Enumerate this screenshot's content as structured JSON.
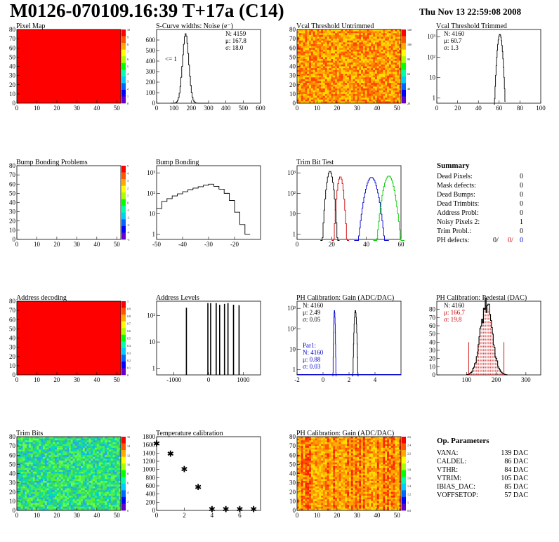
{
  "header": {
    "title": "M0126-070109.16:39 T+17a (C14)",
    "date": "Thu Nov 13 22:59:08 2008"
  },
  "colors": {
    "map_red": "#ff0000",
    "hist_line": "#000000",
    "blue": "#0000cc",
    "red": "#cc0000",
    "green": "#00cc00"
  },
  "palette_ticks": {
    "pixel_map": [
      "10",
      "9",
      "8",
      "7",
      "6",
      "5",
      "4",
      "3",
      "2",
      "1",
      "0"
    ],
    "vcal_untrimmed": [
      "120",
      "100",
      "80",
      "60",
      "40",
      "20"
    ],
    "bump_bonding_problems": [
      "5",
      "4",
      "3",
      "2",
      "1",
      "0",
      "-1",
      "-2",
      "-3",
      "-4",
      "-5"
    ],
    "address_decoding": [
      "1",
      "0.9",
      "0.8",
      "0.7",
      "0.6",
      "0.5",
      "0.4",
      "0.3",
      "0.2",
      "0.1",
      "0"
    ],
    "trim_bits": [
      "16",
      "14",
      "12",
      "10",
      "8",
      "6",
      "4",
      "2",
      "0"
    ],
    "ph_gain": [
      "2.6",
      "2.4",
      "2.2",
      "2",
      "1.8",
      "1.6",
      "1.4",
      "1.2",
      "1",
      "0.8"
    ]
  },
  "chart_data": [
    {
      "id": "pixel_map",
      "type": "heatmap",
      "title": "Pixel Map",
      "xlim": [
        0,
        52
      ],
      "ylim": [
        0,
        80
      ],
      "xticks": [
        "0",
        "10",
        "20",
        "30",
        "40",
        "50"
      ],
      "yticks": [
        "0",
        "10",
        "20",
        "30",
        "40",
        "50",
        "60",
        "70",
        "80"
      ],
      "fill": "uniform red"
    },
    {
      "id": "scurve",
      "type": "histogram",
      "title": "S-Curve widths: Noise (e⁻)",
      "xlim": [
        0,
        600
      ],
      "ylim": [
        0,
        700
      ],
      "xticks": [
        "0",
        "100",
        "200",
        "300",
        "400",
        "500",
        "600"
      ],
      "yticks": [
        "0",
        "100",
        "200",
        "300",
        "400",
        "500",
        "600"
      ],
      "stats": [
        "N: 4159",
        "μ: 167.8",
        "σ: 18.0"
      ],
      "annotation": "<= 1",
      "mean": 167.8,
      "sigma": 18.0,
      "peak": 660
    },
    {
      "id": "vcal_untrimmed",
      "type": "heatmap",
      "title": "Vcal Threshold Untrimmed",
      "xlim": [
        0,
        52
      ],
      "ylim": [
        0,
        80
      ],
      "xticks": [
        "0",
        "10",
        "20",
        "30",
        "40",
        "50"
      ],
      "yticks": [
        "0",
        "10",
        "20",
        "30",
        "40",
        "50",
        "60",
        "70",
        "80"
      ],
      "fill": "noisy orange"
    },
    {
      "id": "vcal_trimmed",
      "type": "histogram",
      "title": "Vcal Threshold Trimmed",
      "xlim": [
        0,
        100
      ],
      "log": true,
      "xticks": [
        "0",
        "20",
        "40",
        "60",
        "80",
        "100"
      ],
      "yticks": [
        "1",
        "10",
        "10²",
        "10³"
      ],
      "stats": [
        "N: 4160",
        "μ: 60.7",
        "σ:  1.3"
      ],
      "mean": 60.7,
      "sigma": 1.3,
      "peak": 1300
    },
    {
      "id": "bump_problems",
      "type": "heatmap",
      "title": "Bump Bonding Problems",
      "xlim": [
        0,
        52
      ],
      "ylim": [
        0,
        80
      ],
      "xticks": [
        "0",
        "10",
        "20",
        "30",
        "40",
        "50"
      ],
      "yticks": [
        "0",
        "10",
        "20",
        "30",
        "40",
        "50",
        "60",
        "70",
        "80"
      ],
      "fill": "empty"
    },
    {
      "id": "bump_bonding",
      "type": "histogram",
      "title": "Bump Bonding",
      "xlim": [
        -50,
        -10
      ],
      "log": true,
      "xticks": [
        "-50",
        "-40",
        "-30",
        "-20"
      ],
      "yticks": [
        "1",
        "10",
        "10²",
        "10³"
      ],
      "x": [
        -50,
        -48,
        -46,
        -44,
        -42,
        -40,
        -38,
        -36,
        -34,
        -32,
        -30,
        -28,
        -26,
        -24,
        -22,
        -20,
        -18,
        -16,
        -14
      ],
      "values": [
        18,
        40,
        55,
        75,
        95,
        120,
        150,
        180,
        210,
        250,
        280,
        220,
        160,
        100,
        45,
        12,
        3,
        1,
        1
      ]
    },
    {
      "id": "trim_bit_test",
      "type": "histogram",
      "title": "Trim Bit Test",
      "xlim": [
        0,
        60
      ],
      "log": true,
      "xticks": [
        "0",
        "20",
        "40",
        "60"
      ],
      "yticks": [
        "1",
        "10",
        "10²",
        "10³"
      ],
      "series": [
        {
          "mean": 19,
          "sigma": 1.1,
          "peak": 1200,
          "color": "#000000"
        },
        {
          "mean": 25,
          "sigma": 1.0,
          "peak": 650,
          "color": "#cc0000"
        },
        {
          "mean": 43,
          "sigma": 2.0,
          "peak": 600,
          "color": "#0000cc"
        },
        {
          "mean": 53,
          "sigma": 1.8,
          "peak": 700,
          "color": "#00cc00"
        }
      ]
    },
    {
      "id": "address_decoding",
      "type": "heatmap",
      "title": "Address decoding",
      "xlim": [
        0,
        52
      ],
      "ylim": [
        0,
        80
      ],
      "xticks": [
        "0",
        "10",
        "20",
        "30",
        "40",
        "50"
      ],
      "yticks": [
        "0",
        "10",
        "20",
        "30",
        "40",
        "50",
        "60",
        "70",
        "80"
      ],
      "fill": "uniform red"
    },
    {
      "id": "address_levels",
      "type": "histogram",
      "title": "Address Levels",
      "xlim": [
        -1500,
        1500
      ],
      "log": true,
      "xticks": [
        "-1000",
        "0",
        "1000"
      ],
      "yticks": [
        "1",
        "10",
        "10²"
      ],
      "lines": [
        -640,
        -20,
        60,
        220,
        320,
        460,
        560,
        720,
        880
      ],
      "heights": [
        200,
        300,
        300,
        300,
        260,
        280,
        300,
        260,
        250
      ]
    },
    {
      "id": "ph_gain_hist",
      "type": "histogram",
      "title": "PH Calibration: Gain (ADC/DAC)",
      "xlim": [
        -2,
        6
      ],
      "log": true,
      "xticks": [
        "-2",
        "0",
        "2",
        "4"
      ],
      "yticks": [
        "1",
        "10",
        "10²",
        "10³"
      ],
      "stats": [
        "N: 4160",
        "μ: 2.49",
        "σ: 0.05"
      ],
      "par1": {
        "label": "Par1:",
        "stats": [
          "N: 4160",
          "μ: 0.88",
          "σ: 0.03"
        ]
      },
      "series": [
        {
          "mean": 2.49,
          "sigma": 0.05,
          "peak": 800,
          "color": "#000000"
        },
        {
          "mean": 0.88,
          "sigma": 0.03,
          "peak": 800,
          "color": "#0000cc"
        }
      ]
    },
    {
      "id": "ph_pedestal",
      "type": "histogram",
      "title": "PH Calibration: Pedestal (DAC)",
      "xlim": [
        0,
        350
      ],
      "ylim": [
        0,
        90
      ],
      "xticks": [
        "100",
        "200",
        "300"
      ],
      "yticks": [
        "0",
        "10",
        "20",
        "30",
        "40",
        "50",
        "60",
        "70",
        "80"
      ],
      "stats": [
        "N: 4160",
        "μ: 166.7",
        "σ: 19.8"
      ],
      "mean": 166.7,
      "sigma": 19.8,
      "peak": 85
    },
    {
      "id": "trim_bits",
      "type": "heatmap",
      "title": "Trim Bits",
      "xlim": [
        0,
        52
      ],
      "ylim": [
        0,
        80
      ],
      "xticks": [
        "0",
        "10",
        "20",
        "30",
        "40",
        "50"
      ],
      "yticks": [
        "0",
        "10",
        "20",
        "30",
        "40",
        "50",
        "60",
        "70",
        "80"
      ],
      "fill": "noisy green"
    },
    {
      "id": "temp_calib",
      "type": "scatter",
      "title": "Temperature calibration",
      "xlim": [
        0,
        7.5
      ],
      "ylim": [
        0,
        1800
      ],
      "xticks": [
        "0",
        "2",
        "4",
        "6"
      ],
      "yticks": [
        "0",
        "200",
        "400",
        "600",
        "800",
        "1000",
        "1200",
        "1400",
        "1600",
        "1800"
      ],
      "x": [
        0,
        1,
        2,
        3,
        4,
        5,
        6,
        7
      ],
      "y": [
        1650,
        1400,
        1020,
        580,
        40,
        40,
        40,
        40
      ]
    },
    {
      "id": "ph_gain_map",
      "type": "heatmap",
      "title": "PH Calibration: Gain (ADC/DAC)",
      "xlim": [
        0,
        52
      ],
      "ylim": [
        0,
        80
      ],
      "xticks": [
        "0",
        "10",
        "20",
        "30",
        "40",
        "50"
      ],
      "yticks": [
        "0",
        "10",
        "20",
        "30",
        "40",
        "50",
        "60",
        "70",
        "80"
      ],
      "fill": "striped"
    }
  ],
  "summary": {
    "title": "Summary",
    "rows": [
      {
        "label": "Dead Pixels:",
        "value": "0"
      },
      {
        "label": "Mask defects:",
        "value": "0"
      },
      {
        "label": "Dead Bumps:",
        "value": "0"
      },
      {
        "label": "Dead Trimbits:",
        "value": "0"
      },
      {
        "label": "Address Probl:",
        "value": "0"
      },
      {
        "label": "Noisy Pixels 2:",
        "value": "1"
      },
      {
        "label": "Trim Probl.:",
        "value": "0"
      }
    ],
    "ph_defects": {
      "label": "PH defects:",
      "v1": "0/",
      "v2": "0/",
      "v3": "0"
    }
  },
  "op_params": {
    "title": "Op. Parameters",
    "rows": [
      {
        "label": "VANA:",
        "value": "139 DAC"
      },
      {
        "label": "CALDEL:",
        "value": "86 DAC"
      },
      {
        "label": "VTHR:",
        "value": "84 DAC"
      },
      {
        "label": "VTRIM:",
        "value": "105 DAC"
      },
      {
        "label": "IBIAS_DAC:",
        "value": "85 DAC"
      },
      {
        "label": "VOFFSETOP:",
        "value": "57 DAC"
      }
    ]
  }
}
